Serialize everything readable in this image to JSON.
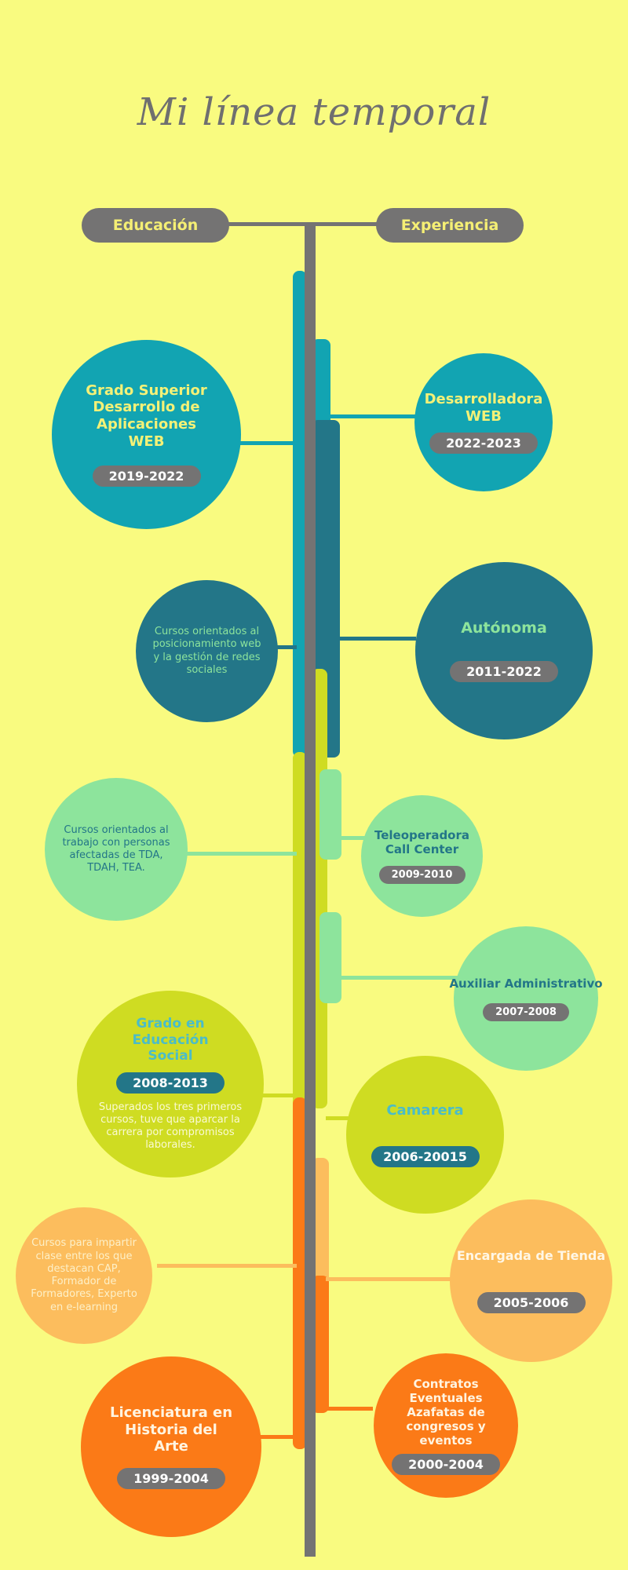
{
  "title": "Mi línea temporal",
  "headers": {
    "education": "Educación",
    "experience": "Experiencia"
  },
  "colors": {
    "background": "#f9fb80",
    "teal": "#12a4b2",
    "dark_teal": "#237688",
    "mint": "#8de49c",
    "lime": "#cfdc22",
    "light_orange": "#fcbd5d",
    "orange": "#fb7a17",
    "gray": "#747373"
  },
  "education": [
    {
      "title": "Grado Superior Desarrollo de Aplicaciones WEB",
      "dates": "2019-2022"
    },
    {
      "description": "Cursos orientados al posicionamiento web y la gestión de redes sociales"
    },
    {
      "description": "Cursos orientados al trabajo con personas afectadas de TDA, TDAH, TEA."
    },
    {
      "title": "Grado en Educación Social",
      "dates": "2008-2013",
      "description": "Superados los tres primeros cursos, tuve que aparcar la carrera por compromisos laborales."
    },
    {
      "description": "Cursos para impartir clase entre los que destacan CAP, Formador de Formadores, Experto en e-learning"
    },
    {
      "title": "Licenciatura en Historia del Arte",
      "dates": "1999-2004"
    }
  ],
  "experience": [
    {
      "title": "Desarrolladora WEB",
      "dates": "2022-2023"
    },
    {
      "title": "Autónoma",
      "dates": "2011-2022"
    },
    {
      "title": "Teleoperadora Call Center",
      "dates": "2009-2010"
    },
    {
      "title": "Auxiliar Administrativo",
      "dates": "2007-2008"
    },
    {
      "title": "Camarera",
      "dates": "2006-20015"
    },
    {
      "title": "Encargada de Tienda",
      "dates": "2005-2006"
    },
    {
      "title": "Contratos Eventuales Azafatas de congresos y eventos",
      "dates": "2000-2004"
    }
  ]
}
